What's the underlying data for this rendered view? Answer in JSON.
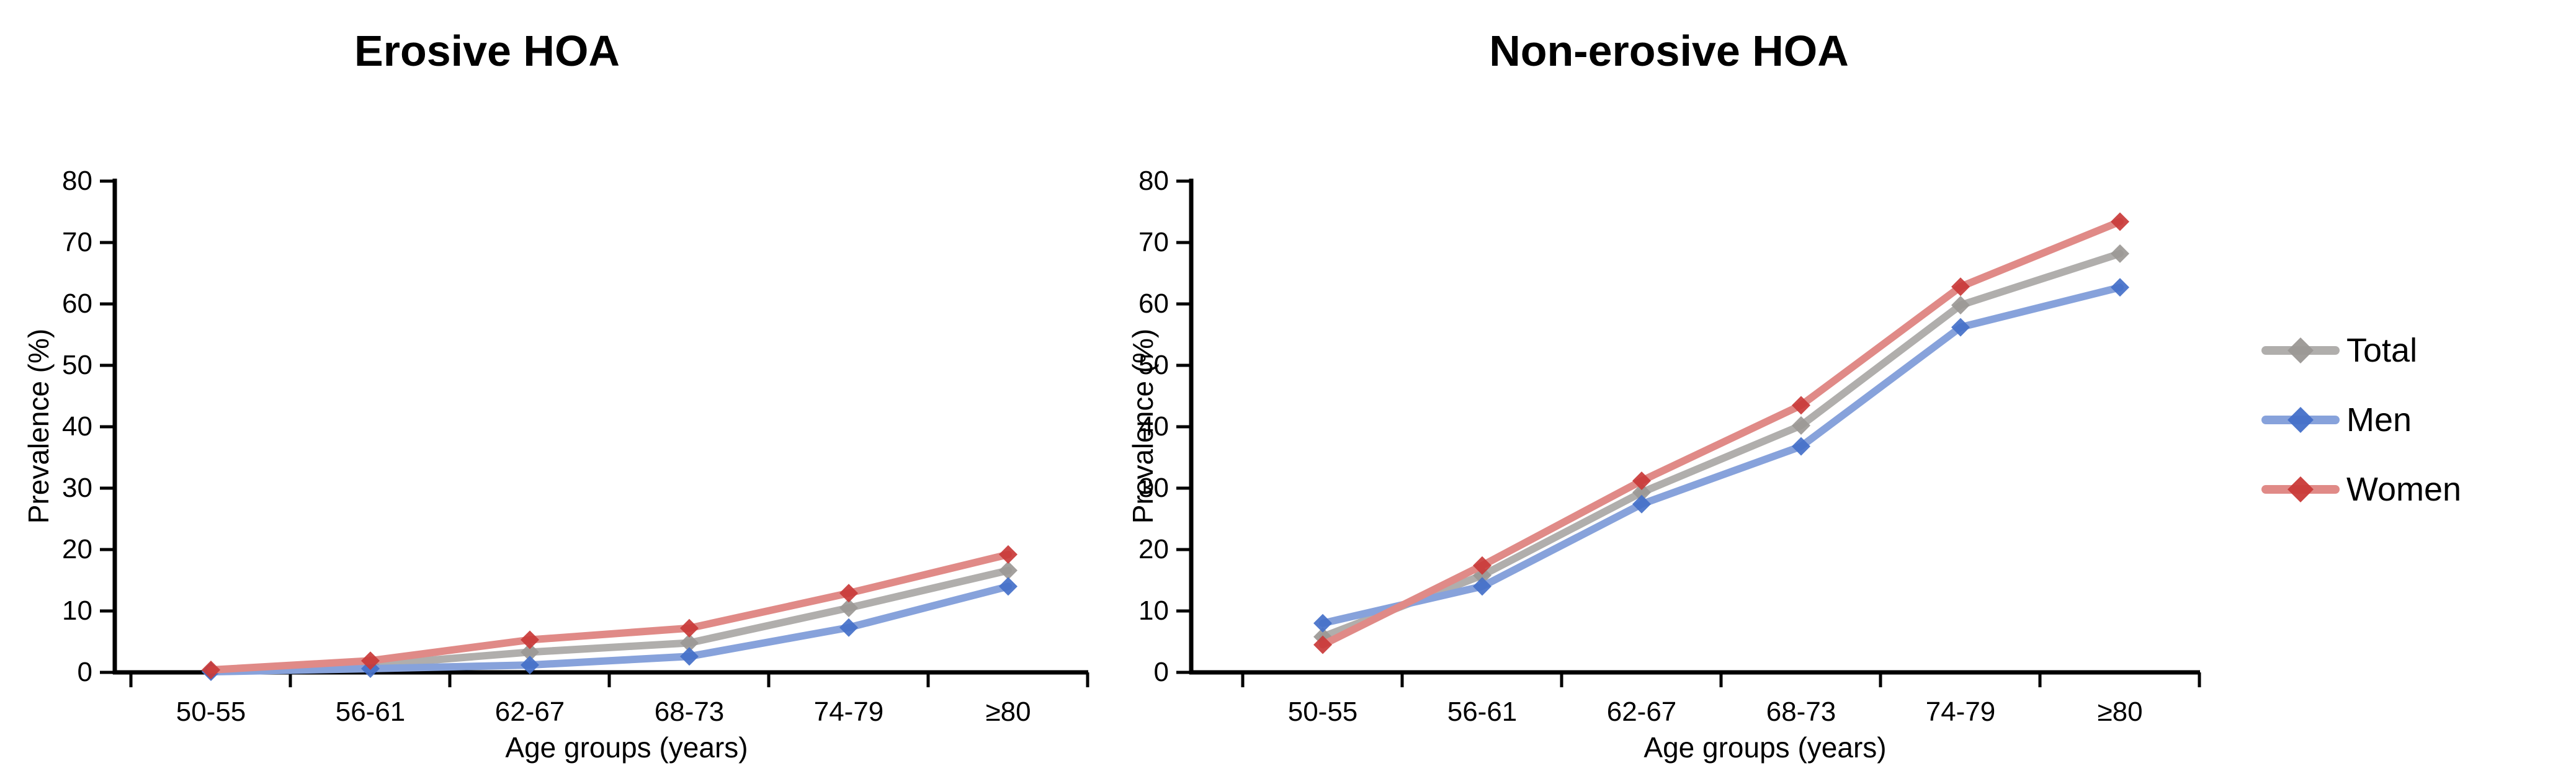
{
  "figure": {
    "background_color": "#ffffff",
    "text_color": "#000000",
    "axis_color": "#000000"
  },
  "legend": {
    "position": "right",
    "items": [
      {
        "label": "Total",
        "line_color": "#B0AEAC",
        "marker_color": "#9B9895",
        "marker_shape": "diamond"
      },
      {
        "label": "Men",
        "line_color": "#87A2DB",
        "marker_color": "#4470C9",
        "marker_shape": "diamond"
      },
      {
        "label": "Women",
        "line_color": "#E08A87",
        "marker_color": "#C93A38",
        "marker_shape": "diamond"
      }
    ]
  },
  "chart_data": [
    {
      "type": "line",
      "title": "Erosive HOA",
      "xlabel": "Age groups (years)",
      "ylabel": "Prevalence (%)",
      "categories": [
        "50-55",
        "56-61",
        "62-67",
        "68-73",
        "74-79",
        "≥80"
      ],
      "ylim": [
        0,
        80
      ],
      "y_ticks": [
        0,
        10,
        20,
        30,
        40,
        50,
        60,
        70,
        80
      ],
      "grid": false,
      "series": [
        {
          "name": "Total",
          "values": [
            0.2,
            1.2,
            3.3,
            4.8,
            10.5,
            16.6
          ]
        },
        {
          "name": "Men",
          "values": [
            0.1,
            0.6,
            1.2,
            2.6,
            7.3,
            14.0
          ]
        },
        {
          "name": "Women",
          "values": [
            0.4,
            1.9,
            5.3,
            7.2,
            12.9,
            19.2
          ]
        }
      ]
    },
    {
      "type": "line",
      "title": "Non-erosive HOA",
      "xlabel": "Age groups (years)",
      "ylabel": "Prevalence (%)",
      "categories": [
        "50-55",
        "56-61",
        "62-67",
        "68-73",
        "74-79",
        "≥80"
      ],
      "ylim": [
        0,
        80
      ],
      "y_ticks": [
        0,
        10,
        20,
        30,
        40,
        50,
        60,
        70,
        80
      ],
      "grid": false,
      "series": [
        {
          "name": "Total",
          "values": [
            5.8,
            15.8,
            29.3,
            40.2,
            59.8,
            68.2
          ]
        },
        {
          "name": "Men",
          "values": [
            8.0,
            14.0,
            27.4,
            36.8,
            56.2,
            62.7
          ]
        },
        {
          "name": "Women",
          "values": [
            4.5,
            17.4,
            31.2,
            43.5,
            62.8,
            73.4
          ]
        }
      ]
    }
  ]
}
